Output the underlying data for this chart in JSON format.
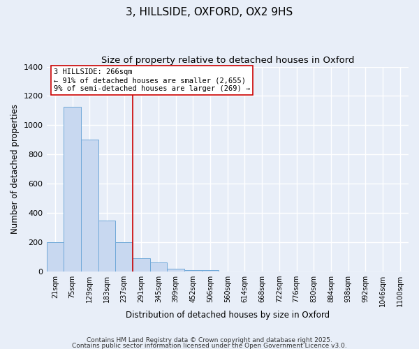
{
  "title": "3, HILLSIDE, OXFORD, OX2 9HS",
  "subtitle": "Size of property relative to detached houses in Oxford",
  "xlabel": "Distribution of detached houses by size in Oxford",
  "ylabel": "Number of detached properties",
  "categories": [
    "21sqm",
    "75sqm",
    "129sqm",
    "183sqm",
    "237sqm",
    "291sqm",
    "345sqm",
    "399sqm",
    "452sqm",
    "506sqm",
    "560sqm",
    "614sqm",
    "668sqm",
    "722sqm",
    "776sqm",
    "830sqm",
    "884sqm",
    "938sqm",
    "992sqm",
    "1046sqm",
    "1100sqm"
  ],
  "bar_values": [
    200,
    1125,
    900,
    350,
    200,
    90,
    60,
    20,
    10,
    10,
    0,
    0,
    0,
    0,
    0,
    0,
    0,
    0,
    0,
    0,
    0
  ],
  "bar_color": "#c8d8f0",
  "bar_edge_color": "#6fa8d8",
  "vline_x_index": 5,
  "vline_color": "#cc0000",
  "annotation_box_text": "3 HILLSIDE: 266sqm\n← 91% of detached houses are smaller (2,655)\n9% of semi-detached houses are larger (269) →",
  "annotation_box_color": "#ffffff",
  "annotation_box_edge_color": "#cc0000",
  "ylim": [
    0,
    1400
  ],
  "yticks": [
    0,
    200,
    400,
    600,
    800,
    1000,
    1200,
    1400
  ],
  "plot_bg_color": "#e8eef8",
  "fig_bg_color": "#e8eef8",
  "grid_color": "#ffffff",
  "footer_line1": "Contains HM Land Registry data © Crown copyright and database right 2025.",
  "footer_line2": "Contains public sector information licensed under the Open Government Licence v3.0.",
  "title_fontsize": 11,
  "subtitle_fontsize": 9.5,
  "footer_fontsize": 6.5
}
